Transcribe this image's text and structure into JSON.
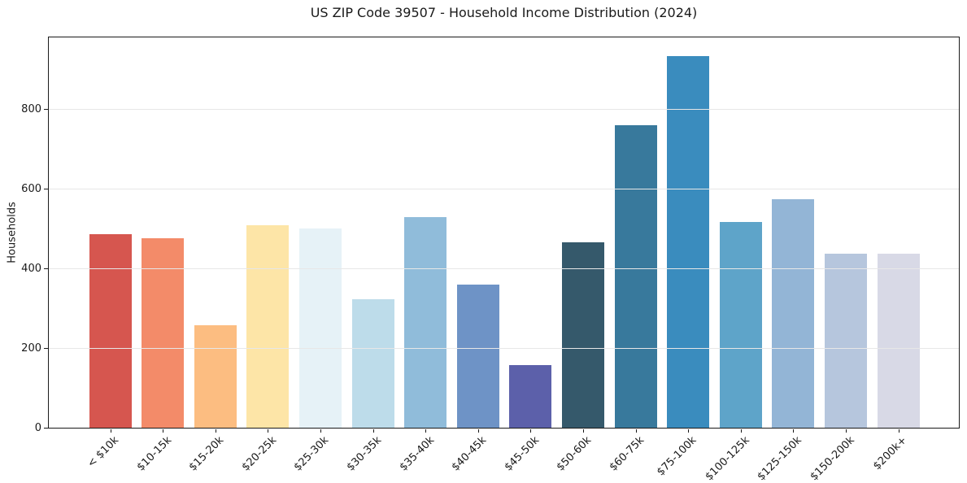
{
  "chart_data": {
    "type": "bar",
    "title": "US ZIP Code 39507 - Household Income Distribution (2024)",
    "xlabel": "",
    "ylabel": "Households",
    "categories": [
      "< $10k",
      "$10-15k",
      "$15-20k",
      "$20-25k",
      "$25-30k",
      "$30-35k",
      "$35-40k",
      "$40-45k",
      "$45-50k",
      "$50-60k",
      "$60-75k",
      "$75-100k",
      "$100-125k",
      "$125-150k",
      "$150-200k",
      "$200k+"
    ],
    "values": [
      487,
      475,
      258,
      509,
      500,
      322,
      528,
      359,
      158,
      465,
      760,
      934,
      516,
      573,
      436,
      438
    ],
    "bar_colors": [
      "#d6564f",
      "#f38b69",
      "#fcbd81",
      "#fde5a7",
      "#e6f2f7",
      "#bddcea",
      "#90bcda",
      "#6e93c6",
      "#5c60aa",
      "#35596b",
      "#38799c",
      "#3a8cbe",
      "#5ea4c9",
      "#93b5d6",
      "#b6c6dd",
      "#d8d9e6"
    ],
    "ylim": [
      0,
      980
    ],
    "yticks": [
      0,
      200,
      400,
      600,
      800
    ],
    "grid": "horizontal-light",
    "legend": "none",
    "colors": {
      "spine": "#1a1a1a",
      "grid": "#e7e7e7",
      "text": "#1a1a1a",
      "background": "#ffffff"
    }
  }
}
